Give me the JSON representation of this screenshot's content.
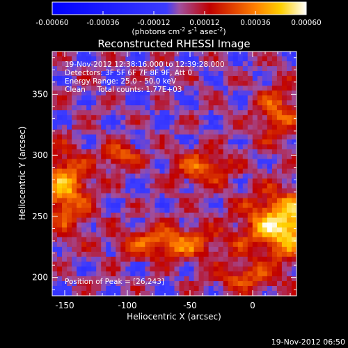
{
  "colorbar": {
    "tick_labels": [
      "-0.00060",
      "-0.00036",
      "-0.00012",
      "0.00012",
      "0.00036",
      "0.00060"
    ],
    "tick_values": [
      -0.0006,
      -0.00036,
      -0.00012,
      0.00012,
      0.00036,
      0.0006
    ],
    "range": [
      -0.0006,
      0.0006
    ],
    "units_prefix": "(photons cm",
    "units_exp1": "-2",
    "units_mid": " s",
    "units_exp2": "-1",
    "units_mid2": " asec",
    "units_exp3": "-2",
    "units_suffix": ")",
    "stops": [
      {
        "v": 0.0,
        "color": "#0000ff"
      },
      {
        "v": 0.45,
        "color": "#3c3cff"
      },
      {
        "v": 0.5,
        "color": "#a050a0"
      },
      {
        "v": 0.62,
        "color": "#c00000"
      },
      {
        "v": 0.8,
        "color": "#ff8000"
      },
      {
        "v": 0.9,
        "color": "#ffd000"
      },
      {
        "v": 1.0,
        "color": "#ffffff"
      }
    ]
  },
  "chart_data": {
    "type": "heatmap",
    "title": "Reconstructed RHESSI Image",
    "xlabel": "Heliocentric X (arcsec)",
    "ylabel": "Heliocentric Y (arcsec)",
    "xlim": [
      -160,
      35
    ],
    "ylim": [
      185,
      385
    ],
    "xticks": [
      -150,
      -100,
      -50,
      0
    ],
    "xtick_labels": [
      "-150",
      "-100",
      "-50",
      "0"
    ],
    "yticks": [
      200,
      250,
      300,
      350
    ],
    "ytick_labels": [
      "200",
      "250",
      "300",
      "350"
    ],
    "annotations": [
      "19-Nov-2012 12:38:16.000 to 12:39:28.000",
      "Detectors: 3F 5F 6F 7F 8F 9F, Att 0",
      "Energy Range: 25.0 - 50.0 keV",
      "Clean     Total counts: 1.77E+03"
    ],
    "peak_label": "Position of Peak = [26,243]",
    "peak": [
      26,
      243
    ],
    "sources": [
      {
        "x": 26,
        "y": 243,
        "amp": 0.00055,
        "sx": 22,
        "sy": 18
      },
      {
        "x": -150,
        "y": 272,
        "amp": 0.0004,
        "sx": 14,
        "sy": 22
      },
      {
        "x": -65,
        "y": 228,
        "amp": 0.00035,
        "sx": 28,
        "sy": 9
      },
      {
        "x": -105,
        "y": 300,
        "amp": 0.0003,
        "sx": 10,
        "sy": 7
      },
      {
        "x": -40,
        "y": 290,
        "amp": 0.0003,
        "sx": 16,
        "sy": 10
      },
      {
        "x": 20,
        "y": 335,
        "amp": 0.00028,
        "sx": 12,
        "sy": 16
      },
      {
        "x": -5,
        "y": 200,
        "amp": 0.00025,
        "sx": 18,
        "sy": 8
      }
    ]
  },
  "footer": {
    "timestamp": "19-Nov-2012 06:50"
  }
}
